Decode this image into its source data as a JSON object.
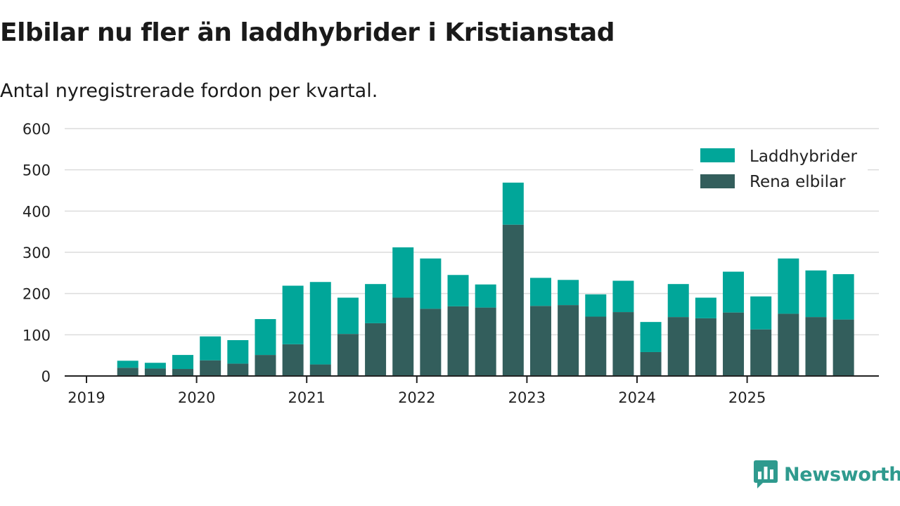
{
  "header": {
    "title": "Elbilar nu fler än laddhybrider i Kristianstad",
    "subtitle": "Antal nyregistrerade fordon per kvartal."
  },
  "brand": {
    "name": "Newsworthy",
    "icon": "newsworthy-logo-icon"
  },
  "colors": {
    "laddhybrider": "#01a699",
    "rena_elbilar": "#335e5c",
    "grid": "#dcdcdc",
    "axis": "#222222"
  },
  "chart_data": {
    "type": "bar",
    "stacked": true,
    "title": "Elbilar nu fler än laddhybrider i Kristianstad",
    "subtitle": "Antal nyregistrerade fordon per kvartal.",
    "xlabel": "",
    "ylabel": "",
    "ylim": [
      0,
      600
    ],
    "yticks": [
      0,
      100,
      200,
      300,
      400,
      500,
      600
    ],
    "grid": true,
    "legend_position": "top-right",
    "x_tick_labels": [
      "2019",
      "2020",
      "2021",
      "2022",
      "2023",
      "2024",
      "2025"
    ],
    "categories": [
      "2019 Q2",
      "2019 Q3",
      "2019 Q4",
      "2020 Q1",
      "2020 Q2",
      "2020 Q3",
      "2020 Q4",
      "2021 Q1",
      "2021 Q2",
      "2021 Q3",
      "2021 Q4",
      "2022 Q1",
      "2022 Q2",
      "2022 Q3",
      "2022 Q4",
      "2023 Q1",
      "2023 Q2",
      "2023 Q3",
      "2023 Q4",
      "2024 Q1",
      "2024 Q2",
      "2024 Q3",
      "2024 Q4",
      "2025 Q1",
      "2025 Q2",
      "2025 Q3",
      "2025 Q4"
    ],
    "series": [
      {
        "name": "Rena elbilar",
        "values": [
          20,
          18,
          17,
          38,
          30,
          51,
          77,
          28,
          102,
          128,
          190,
          163,
          169,
          166,
          367,
          170,
          172,
          144,
          155,
          58,
          143,
          140,
          154,
          113,
          151,
          143,
          137
        ]
      },
      {
        "name": "Laddhybrider",
        "values": [
          17,
          14,
          34,
          58,
          57,
          87,
          142,
          200,
          88,
          95,
          122,
          122,
          76,
          56,
          102,
          68,
          61,
          54,
          76,
          73,
          80,
          50,
          99,
          80,
          134,
          113,
          110
        ]
      }
    ]
  }
}
